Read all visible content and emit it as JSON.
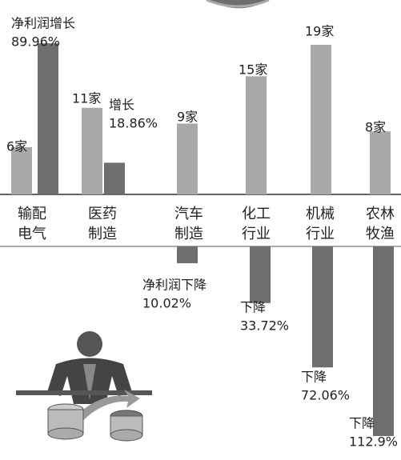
{
  "chart_data": {
    "type": "bar",
    "categories": [
      [
        "输配",
        "电气"
      ],
      [
        "医药",
        "制造"
      ],
      [
        "汽车",
        "制造"
      ],
      [
        "化工",
        "行业"
      ],
      [
        "机械",
        "行业"
      ],
      [
        "农林",
        "牧渔"
      ]
    ],
    "series": [
      {
        "color": "#a9a9a9",
        "values": [
          6,
          11,
          9,
          15,
          19,
          8
        ],
        "value_labels": [
          [
            "6家"
          ],
          [
            "11家"
          ],
          [
            "9家"
          ],
          [
            "15家"
          ],
          [
            "19家"
          ],
          [
            "8家"
          ]
        ]
      },
      {
        "color": "#6e6e6e",
        "values": [
          89.96,
          18.86,
          -10.02,
          -33.72,
          -72.06,
          -112.9
        ],
        "value_labels": [
          [
            "净利润增长",
            "89.96%"
          ],
          [
            "增长",
            "18.86%"
          ],
          [
            "净利润下降",
            "10.02%"
          ],
          [
            "下降",
            "33.72%"
          ],
          [
            "下降",
            "72.06%"
          ],
          [
            "下降",
            "112.9%"
          ]
        ]
      }
    ]
  }
}
